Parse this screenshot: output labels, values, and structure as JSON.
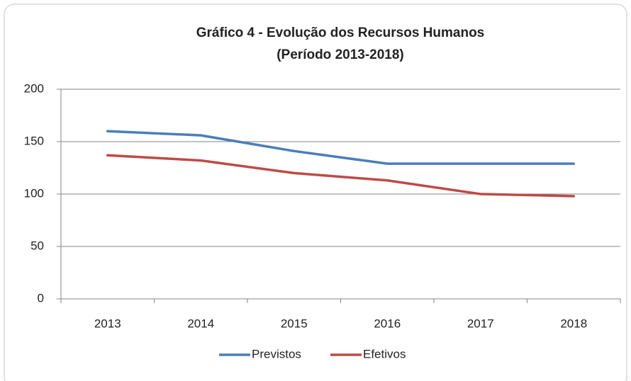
{
  "chart_data": {
    "type": "line",
    "title": [
      "Gráfico 4 - Evolução dos Recursos Humanos",
      "(Período 2013-2018)"
    ],
    "categories": [
      "2013",
      "2014",
      "2015",
      "2016",
      "2017",
      "2018"
    ],
    "series": [
      {
        "name": "Previstos",
        "color": "#4a7ebb",
        "values": [
          160,
          156,
          141,
          129,
          129,
          129
        ]
      },
      {
        "name": "Efetivos",
        "color": "#be4b48",
        "values": [
          137,
          132,
          120,
          113,
          100,
          98
        ]
      }
    ],
    "ylim": [
      0,
      200
    ],
    "yticks": [
      0,
      50,
      100,
      150,
      200
    ],
    "grid": true,
    "legend": "bottom"
  }
}
